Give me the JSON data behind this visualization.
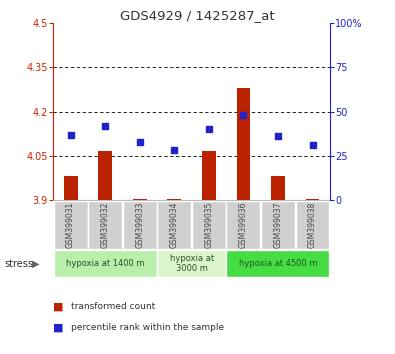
{
  "title": "GDS4929 / 1425287_at",
  "samples": [
    "GSM399031",
    "GSM399032",
    "GSM399033",
    "GSM399034",
    "GSM399035",
    "GSM399036",
    "GSM399037",
    "GSM399038"
  ],
  "red_values": [
    3.98,
    4.065,
    3.902,
    3.902,
    4.065,
    4.28,
    3.98,
    3.902
  ],
  "blue_values_pct": [
    37,
    42,
    33,
    28,
    40,
    48,
    36,
    31
  ],
  "ylim_left": [
    3.9,
    4.5
  ],
  "ylim_right": [
    0,
    100
  ],
  "yticks_left": [
    3.9,
    4.05,
    4.2,
    4.35,
    4.5
  ],
  "yticks_right": [
    0,
    25,
    50,
    75,
    100
  ],
  "ytick_labels_left": [
    "3.9",
    "4.05",
    "4.2",
    "4.35",
    "4.5"
  ],
  "ytick_labels_right": [
    "0",
    "25",
    "50",
    "75",
    "100%"
  ],
  "hlines": [
    4.05,
    4.2,
    4.35
  ],
  "groups": [
    {
      "label": "hypoxia at 1400 m",
      "samples": [
        0,
        1,
        2
      ],
      "color": "#bbeeaa"
    },
    {
      "label": "hypoxia at\n3000 m",
      "samples": [
        3,
        4
      ],
      "color": "#ddf5cc"
    },
    {
      "label": "hypoxia at 4500 m",
      "samples": [
        5,
        6,
        7
      ],
      "color": "#44dd44"
    }
  ],
  "bar_color": "#bb2200",
  "dot_color": "#2222cc",
  "bar_bottom": 3.9,
  "legend_red": "transformed count",
  "legend_blue": "percentile rank within the sample",
  "stress_label": "stress",
  "left_axis_color": "#cc2200",
  "right_axis_color": "#2222cc",
  "tick_gray": "#888888",
  "sample_box_color": "#d0d0d0",
  "sample_text_color": "#444444"
}
